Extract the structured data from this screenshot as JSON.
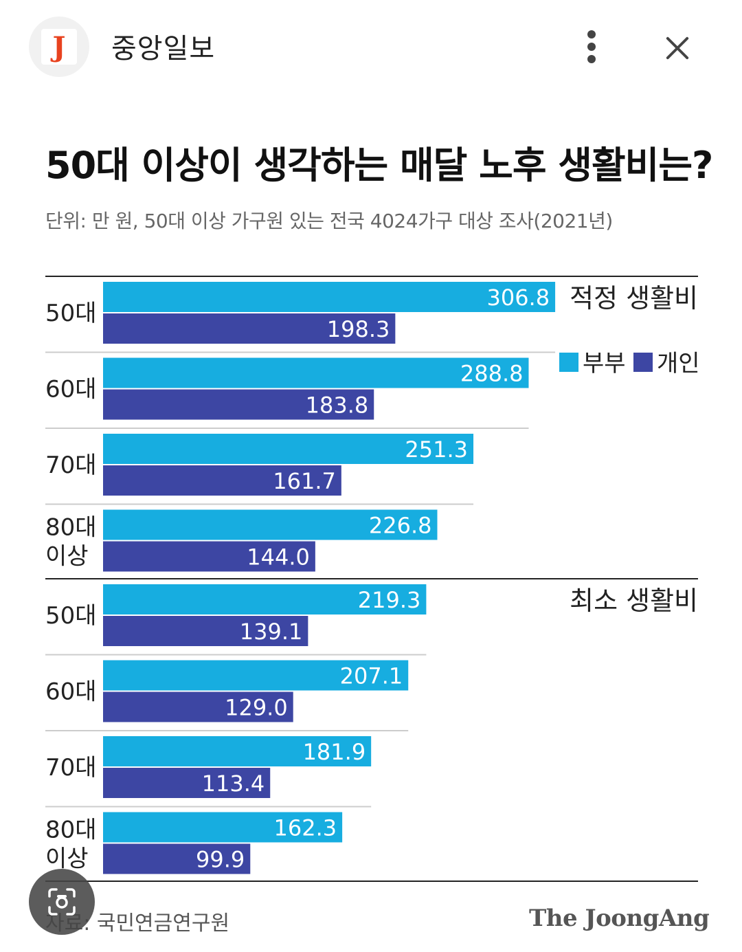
{
  "header": {
    "logo_letter": "J",
    "app_name": "중앙일보",
    "menu_icon": "more-vert-icon",
    "close_icon": "close-icon"
  },
  "chart_data": {
    "type": "bar",
    "orientation": "horizontal",
    "title": "50대 이상이 생각하는 매달 노후 생활비는?",
    "subtitle": "단위: 만 원, 50대 이상 가구원 있는 전국 4024가구 대상 조사(2021년)",
    "legend": [
      "부부",
      "개인"
    ],
    "legend_position": "right",
    "colors": {
      "부부": "#17ade0",
      "개인": "#3d46a3"
    },
    "groups": [
      {
        "name": "적정 생활비",
        "categories": [
          [
            "50대"
          ],
          [
            "60대"
          ],
          [
            "70대"
          ],
          [
            "80대",
            "이상"
          ]
        ],
        "series": [
          {
            "name": "부부",
            "values": [
              306.8,
              288.8,
              251.3,
              226.8
            ]
          },
          {
            "name": "개인",
            "values": [
              198.3,
              183.8,
              161.7,
              144.0
            ]
          }
        ]
      },
      {
        "name": "최소 생활비",
        "categories": [
          [
            "50대"
          ],
          [
            "60대"
          ],
          [
            "70대"
          ],
          [
            "80대",
            "이상"
          ]
        ],
        "series": [
          {
            "name": "부부",
            "values": [
              219.3,
              207.1,
              181.9,
              162.3
            ]
          },
          {
            "name": "개인",
            "values": [
              139.1,
              129.0,
              113.4,
              99.9
            ]
          }
        ]
      }
    ],
    "source": "자료: 국민연금연구원",
    "brand": "The JoongAng"
  },
  "overlay": {
    "lens_icon": "lens-search-icon"
  }
}
